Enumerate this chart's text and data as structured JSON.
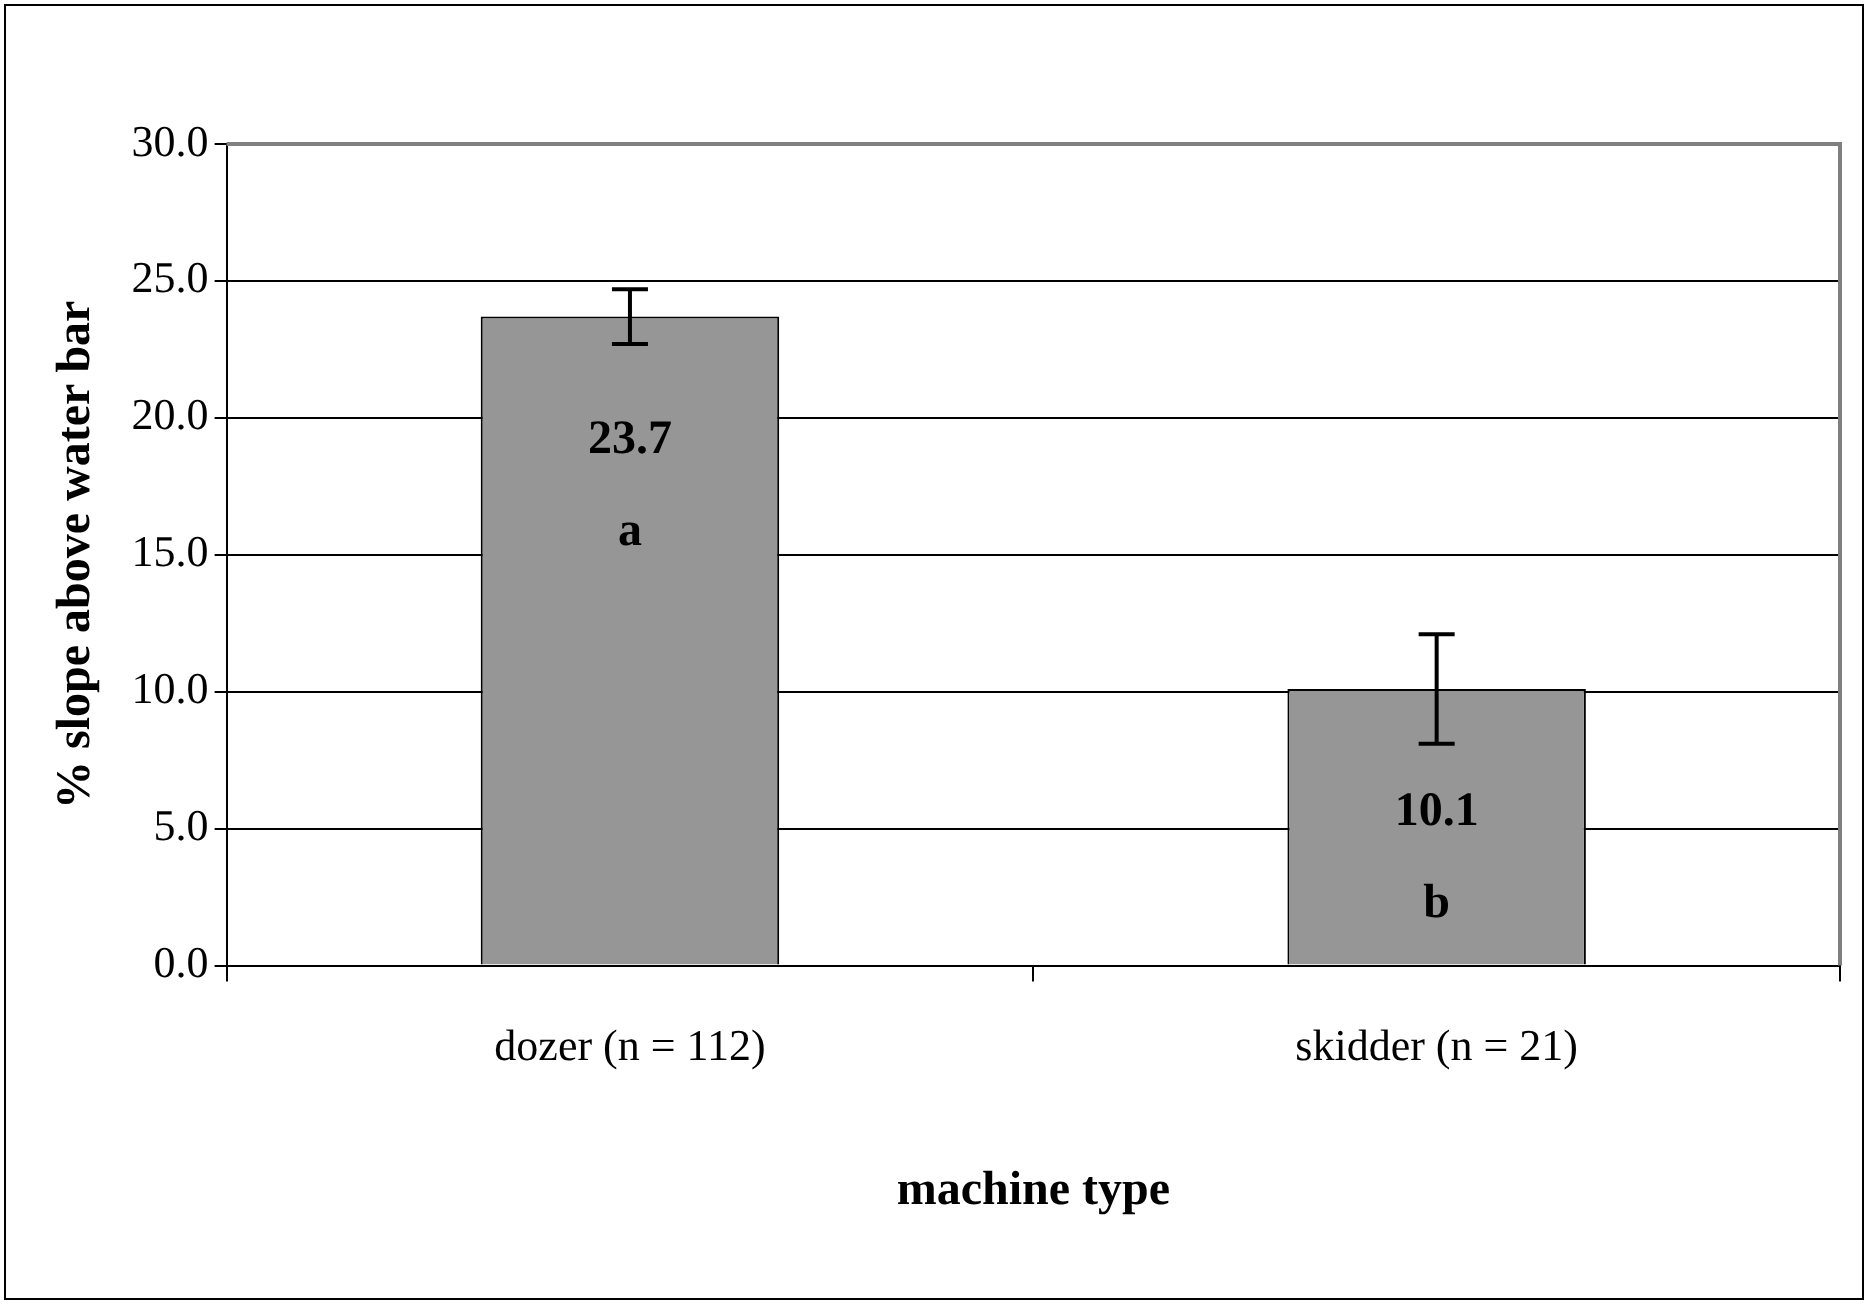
{
  "chart_data": {
    "type": "bar",
    "xlabel": "machine type",
    "ylabel": "% slope above water bar",
    "categories": [
      "dozer (n = 112)",
      "skidder (n = 21)"
    ],
    "values": [
      23.7,
      10.1
    ],
    "color": "#969696",
    "errors": [
      1.0,
      2.0
    ],
    "data_labels": true,
    "annotations": [
      "a",
      "b"
    ],
    "ylim": [
      0,
      30
    ],
    "yticks": [
      {
        "value": 0,
        "label": "0.0"
      },
      {
        "value": 5,
        "label": "5.0"
      },
      {
        "value": 10,
        "label": "10.0"
      },
      {
        "value": 15,
        "label": "15.0"
      },
      {
        "value": 20,
        "label": "20.0"
      },
      {
        "value": 25,
        "label": "25.0"
      },
      {
        "value": 30,
        "label": "30.0"
      }
    ],
    "grid": "y",
    "legend": false
  }
}
